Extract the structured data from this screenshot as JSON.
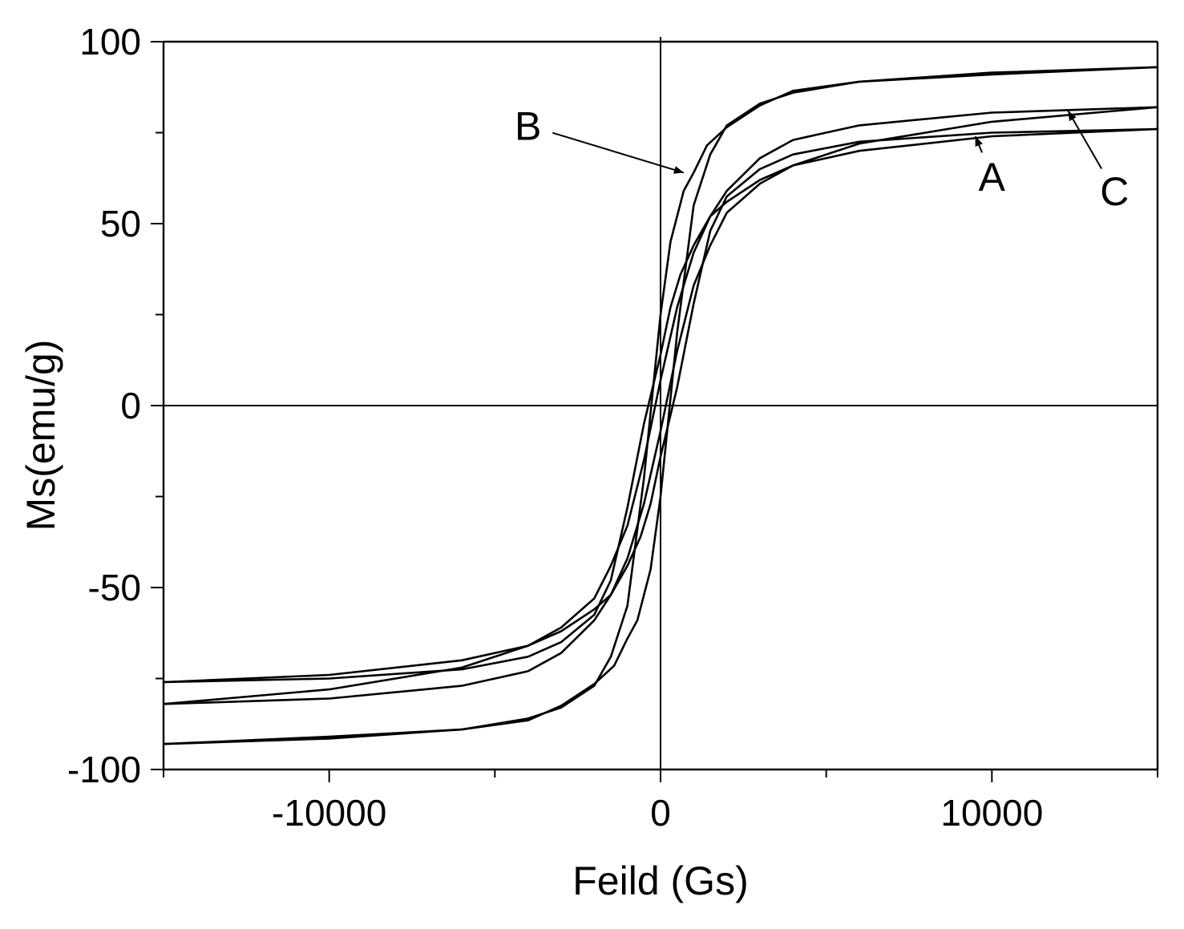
{
  "chart_data": {
    "type": "line",
    "title": "",
    "xlabel": "Feild (Gs)",
    "ylabel": "Ms(emu/g)",
    "xlim": [
      -15000,
      15000
    ],
    "ylim": [
      -100,
      100
    ],
    "x_ticks": [
      -10000,
      0,
      10000
    ],
    "x_tick_labels": [
      "-10000",
      "0",
      "10000"
    ],
    "y_ticks": [
      -100,
      -50,
      0,
      50,
      100
    ],
    "y_tick_labels": [
      "-100",
      "-50",
      "0",
      "50",
      "100"
    ],
    "x_minor_step": 5000,
    "y_minor_step": 25,
    "grid": false,
    "legend": "none",
    "line_color": "#000000",
    "reference_lines": {
      "x": 0,
      "y": 0
    },
    "series": [
      {
        "name": "A",
        "upper": {
          "x": [
            -15000,
            -10000,
            -6000,
            -4000,
            -3000,
            -2000,
            -1500,
            -1000,
            -500,
            0,
            300,
            600,
            1000,
            1500,
            2000,
            3000,
            4000,
            6000,
            10000,
            15000
          ],
          "y": [
            -76,
            -75,
            -72.5,
            -69,
            -65,
            -57.5,
            -48,
            -28,
            -5,
            14,
            27,
            36,
            44,
            52,
            56,
            62,
            66,
            70,
            74,
            76
          ]
        },
        "lower": {
          "x": [
            15000,
            10000,
            6000,
            4000,
            3000,
            2000,
            1500,
            1000,
            500,
            0,
            -300,
            -600,
            -1000,
            -1500,
            -2000,
            -3000,
            -4000,
            -6000,
            -10000,
            -15000
          ],
          "y": [
            76,
            75,
            72.5,
            69,
            65,
            57.5,
            48,
            28,
            5,
            -14,
            -27,
            -36,
            -44,
            -52,
            -56,
            -62,
            -66,
            -70,
            -74,
            -76
          ]
        }
      },
      {
        "name": "B",
        "upper": {
          "x": [
            -15000,
            -10000,
            -6000,
            -4000,
            -3000,
            -2000,
            -1500,
            -1000,
            -500,
            0,
            300,
            700,
            1000,
            1400,
            2000,
            3000,
            4000,
            6000,
            10000,
            15000
          ],
          "y": [
            -93,
            -91.5,
            -89,
            -86,
            -83,
            -77,
            -69,
            -55,
            -20,
            25,
            45,
            59,
            64,
            71.5,
            76.5,
            82.5,
            86.5,
            89,
            91,
            93
          ]
        },
        "lower": {
          "x": [
            15000,
            10000,
            6000,
            4000,
            3000,
            2000,
            1500,
            1000,
            500,
            0,
            -300,
            -700,
            -1000,
            -1400,
            -2000,
            -3000,
            -4000,
            -6000,
            -10000,
            -15000
          ],
          "y": [
            93,
            91.5,
            89,
            86,
            83,
            77,
            69,
            55,
            20,
            -25,
            -45,
            -59,
            -64,
            -71.5,
            -76.5,
            -82.5,
            -86.5,
            -89,
            -91,
            -93
          ]
        }
      },
      {
        "name": "C",
        "upper": {
          "x": [
            -15000,
            -10000,
            -6000,
            -4000,
            -3000,
            -2000,
            -1500,
            -1000,
            -500,
            0,
            500,
            1000,
            1500,
            2000,
            3000,
            4000,
            6000,
            10000,
            15000
          ],
          "y": [
            -82,
            -80.5,
            -77,
            -73,
            -68,
            -59,
            -52,
            -42,
            -27,
            -7,
            15,
            33,
            44,
            53,
            61,
            66,
            72,
            78,
            82
          ]
        },
        "lower": {
          "x": [
            15000,
            10000,
            6000,
            4000,
            3000,
            2000,
            1500,
            1000,
            500,
            0,
            -500,
            -1000,
            -1500,
            -2000,
            -3000,
            -4000,
            -6000,
            -10000,
            -15000
          ],
          "y": [
            82,
            80.5,
            77,
            73,
            68,
            59,
            52,
            42,
            27,
            7,
            -15,
            -33,
            -44,
            -53,
            -61,
            -66,
            -72,
            -78,
            -82
          ]
        }
      }
    ],
    "annotations": [
      {
        "text": "A",
        "x": 10000,
        "y": 63,
        "arrow_to": [
          9500,
          74
        ]
      },
      {
        "text": "B",
        "x": -4000,
        "y": 77,
        "arrow_to": [
          700,
          64
        ]
      },
      {
        "text": "C",
        "x": 13700,
        "y": 59,
        "arrow_to": [
          12300,
          81
        ]
      }
    ]
  }
}
